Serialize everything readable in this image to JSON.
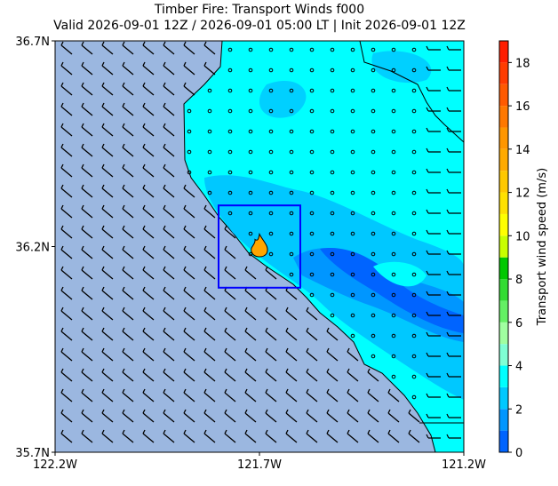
{
  "chart_data": {
    "type": "map",
    "title": "Timber Fire: Transport Winds f000",
    "subtitle": "Valid 2026-09-01 12Z / 2026-09-01 05:00 LT | Init 2026-09-01 12Z",
    "xlim": [
      -122.2,
      -121.2
    ],
    "ylim": [
      35.7,
      36.7
    ],
    "xticks": [
      {
        "value": -122.2,
        "label": "122.2W"
      },
      {
        "value": -121.7,
        "label": "121.7W"
      },
      {
        "value": -121.2,
        "label": "121.2W"
      }
    ],
    "yticks": [
      {
        "value": 35.7,
        "label": "35.7N"
      },
      {
        "value": 36.2,
        "label": "36.2N"
      },
      {
        "value": 36.7,
        "label": "36.7N"
      }
    ],
    "fire_box": {
      "lon": [
        -121.8,
        -121.6
      ],
      "lat": [
        36.1,
        36.3
      ],
      "color": "#0000ff"
    },
    "fire_location": {
      "lon": -121.7,
      "lat": 36.2,
      "color": "#ffa500"
    },
    "colorbar": {
      "label": "Transport wind speed (m/s)",
      "lim": [
        0,
        19
      ],
      "ticks": [
        0,
        2,
        4,
        6,
        8,
        10,
        12,
        14,
        16,
        18
      ],
      "colors": [
        "#0064ff",
        "#0096ff",
        "#00c8ff",
        "#00ffff",
        "#7fffd4",
        "#a0ffa0",
        "#64f064",
        "#32dc32",
        "#00c800",
        "#c8ff00",
        "#ffff00",
        "#ffe100",
        "#ffc800",
        "#ffaa00",
        "#ff9600",
        "#ff7800",
        "#ff5a00",
        "#ff3c00",
        "#ff1e00"
      ]
    }
  }
}
